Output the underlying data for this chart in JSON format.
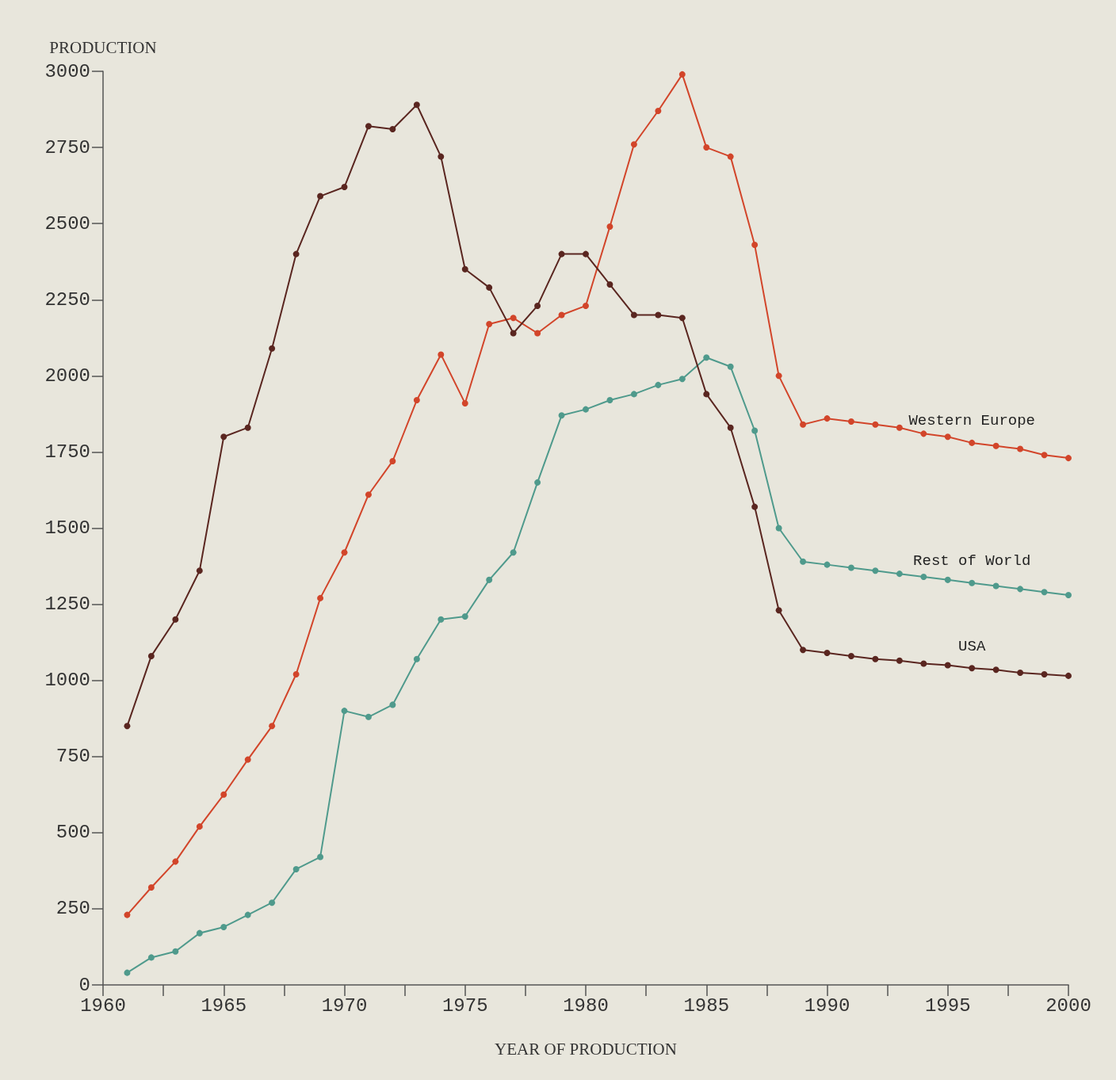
{
  "chart_data": {
    "type": "line",
    "xlabel": "YEAR OF PRODUCTION",
    "ylabel": "PRODUCTION",
    "x": [
      1961,
      1962,
      1963,
      1964,
      1965,
      1966,
      1967,
      1968,
      1969,
      1970,
      1971,
      1972,
      1973,
      1974,
      1975,
      1976,
      1977,
      1978,
      1979,
      1980,
      1981,
      1982,
      1983,
      1984,
      1985,
      1986,
      1987,
      1988,
      1989,
      1990,
      1991,
      1992,
      1993,
      1994,
      1995,
      1996,
      1997,
      1998,
      1999,
      2000
    ],
    "xlim": [
      1960,
      2000
    ],
    "xticks": [
      1960,
      {
        "value": 1962.5,
        "label": null
      },
      1965,
      {
        "value": 1967.5,
        "label": null
      },
      1970,
      {
        "value": 1972.5,
        "label": null
      },
      1975,
      {
        "value": 1977.5,
        "label": null
      },
      1980,
      {
        "value": 1982.5,
        "label": null
      },
      1985,
      {
        "value": 1987.5,
        "label": null
      },
      1990,
      {
        "value": 1992.5,
        "label": null
      },
      1995,
      {
        "value": 1997.5,
        "label": null
      },
      2000
    ],
    "ylim": [
      0,
      3000
    ],
    "yticks": [
      0,
      250,
      500,
      750,
      1000,
      1250,
      1500,
      1750,
      2000,
      2250,
      2500,
      2750,
      3000
    ],
    "grid": false,
    "legend": false,
    "marker": "circle",
    "series": [
      {
        "name": "Western Europe",
        "color": "#d2452a",
        "values": [
          230,
          320,
          405,
          520,
          625,
          740,
          850,
          1020,
          1270,
          1420,
          1610,
          1720,
          1920,
          2070,
          1910,
          2170,
          2190,
          2140,
          2200,
          2230,
          2490,
          2760,
          2870,
          2990,
          2750,
          2720,
          2430,
          2000,
          1840,
          1860,
          1850,
          1840,
          1830,
          1810,
          1800,
          1780,
          1770,
          1760,
          1740,
          1730
        ]
      },
      {
        "name": "Rest of World",
        "color": "#4f9a8c",
        "values": [
          40,
          90,
          110,
          170,
          190,
          230,
          270,
          380,
          420,
          900,
          880,
          920,
          1070,
          1200,
          1210,
          1330,
          1420,
          1650,
          1870,
          1890,
          1920,
          1940,
          1970,
          1990,
          2060,
          2030,
          1820,
          1500,
          1390,
          1380,
          1370,
          1360,
          1350,
          1340,
          1330,
          1320,
          1310,
          1300,
          1290,
          1280
        ]
      },
      {
        "name": "USA",
        "color": "#5a2620",
        "values": [
          850,
          1080,
          1200,
          1360,
          1800,
          1830,
          2090,
          2400,
          2590,
          2620,
          2820,
          2810,
          2890,
          2720,
          2350,
          2290,
          2140,
          2230,
          2400,
          2400,
          2300,
          2200,
          2200,
          2190,
          1940,
          1830,
          1570,
          1230,
          1100,
          1090,
          1080,
          1070,
          1065,
          1055,
          1050,
          1040,
          1035,
          1025,
          1020,
          1015
        ]
      }
    ]
  }
}
